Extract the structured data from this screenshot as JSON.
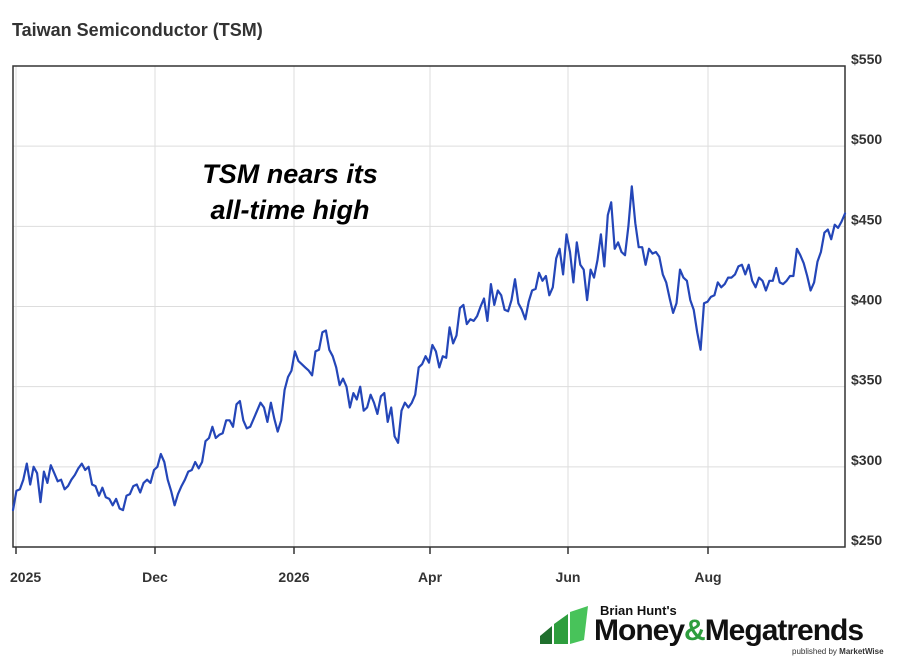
{
  "chart_data": {
    "type": "line",
    "title": "Taiwan Semiconductor (TSM)",
    "annotation": [
      "TSM nears its",
      "all-time high"
    ],
    "xlabel": "",
    "ylabel": "",
    "x_tick_labels": [
      "2025",
      "Dec",
      "2026",
      "Apr",
      "Jun",
      "Aug"
    ],
    "y_tick_labels": [
      "$550",
      "$500",
      "$450",
      "$400",
      "$350",
      "$300",
      "$250"
    ],
    "y_ticks": [
      550,
      500,
      450,
      400,
      350,
      300,
      250
    ],
    "ylim": [
      250,
      550
    ],
    "y_axis_side": "right",
    "grid": true,
    "line_color": "#2446b8",
    "series": [
      {
        "values": [
          273,
          285,
          286,
          292,
          302,
          289,
          300,
          296,
          278,
          297,
          290,
          301,
          296,
          291,
          292,
          286,
          288,
          292,
          295,
          299,
          302,
          298,
          300,
          289,
          288,
          282,
          287,
          281,
          280,
          276,
          280,
          274,
          273,
          282,
          283,
          288,
          289,
          284,
          290,
          292,
          290,
          298,
          300,
          308,
          303,
          292,
          285,
          276,
          283,
          288,
          292,
          297,
          298,
          303,
          299,
          303,
          316,
          318,
          325,
          318,
          320,
          321,
          329,
          329,
          325,
          339,
          341,
          329,
          324,
          325,
          330,
          335,
          340,
          337,
          328,
          340,
          330,
          322,
          329,
          348,
          356,
          360,
          372,
          366,
          364,
          362,
          360,
          357,
          372,
          373,
          384,
          385,
          373,
          369,
          362,
          351,
          355,
          350,
          337,
          346,
          342,
          350,
          335,
          337,
          345,
          340,
          333,
          344,
          346,
          328,
          337,
          319,
          315,
          335,
          340,
          337,
          340,
          345,
          362,
          364,
          369,
          365,
          376,
          372,
          362,
          369,
          368,
          387,
          377,
          382,
          399,
          401,
          389,
          392,
          391,
          394,
          400,
          405,
          391,
          414,
          401,
          410,
          407,
          398,
          397,
          404,
          417,
          402,
          398,
          392,
          403,
          410,
          411,
          421,
          416,
          419,
          407,
          412,
          430,
          436,
          420,
          445,
          434,
          415,
          440,
          426,
          423,
          404,
          423,
          418,
          429,
          445,
          425,
          457,
          465,
          436,
          440,
          434,
          432,
          450,
          475,
          452,
          437,
          437,
          426,
          436,
          433,
          434,
          431,
          420,
          415,
          405,
          396,
          402,
          423,
          418,
          416,
          404,
          398,
          384,
          373,
          402,
          403,
          406,
          407,
          415,
          412,
          414,
          418,
          418,
          420,
          425,
          426,
          420,
          426,
          416,
          412,
          418,
          416,
          410,
          416,
          416,
          424,
          415,
          414,
          416,
          419,
          419,
          436,
          432,
          427,
          419,
          410,
          415,
          428,
          434,
          446,
          448,
          442,
          451,
          449,
          453,
          458
        ]
      }
    ]
  },
  "logo": {
    "top_text": "Brian Hunt's",
    "main_text_1": "Money",
    "amp": "&",
    "main_text_2": "Megatrends",
    "sub_text": "published by",
    "sub_brand": "MarketWise",
    "brand_color": "#2e9e3e"
  }
}
